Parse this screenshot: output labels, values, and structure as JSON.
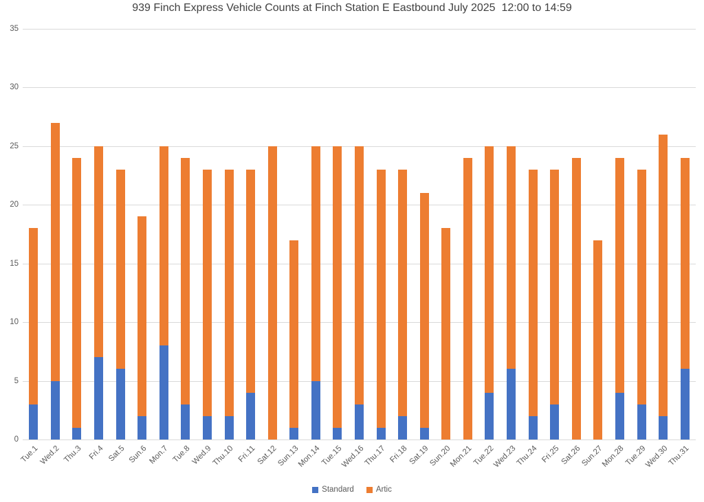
{
  "chart_data": {
    "type": "bar",
    "stacked": true,
    "title": "939 Finch Express Vehicle Counts at Finch Station E Eastbound July 2025  12:00 to 14:59",
    "categories": [
      "Tue.1",
      "Wed.2",
      "Thu.3",
      "Fri.4",
      "Sat.5",
      "Sun.6",
      "Mon.7",
      "Tue.8",
      "Wed.9",
      "Thu.10",
      "Fri.11",
      "Sat.12",
      "Sun.13",
      "Mon.14",
      "Tue.15",
      "Wed.16",
      "Thu.17",
      "Fri.18",
      "Sat.19",
      "Sun.20",
      "Mon.21",
      "Tue.22",
      "Wed.23",
      "Thu.24",
      "Fri.25",
      "Sat.26",
      "Sun.27",
      "Mon.28",
      "Tue.29",
      "Wed.30",
      "Thu.31"
    ],
    "series": [
      {
        "name": "Standard",
        "color": "#4472C4",
        "values": [
          3,
          5,
          1,
          7,
          6,
          2,
          8,
          3,
          2,
          2,
          4,
          0,
          1,
          5,
          1,
          3,
          1,
          2,
          1,
          0,
          0,
          4,
          6,
          2,
          3,
          0,
          0,
          4,
          3,
          2,
          6
        ]
      },
      {
        "name": "Artic",
        "color": "#ED7D31",
        "values": [
          15,
          22,
          23,
          18,
          17,
          17,
          17,
          21,
          21,
          21,
          19,
          25,
          16,
          20,
          24,
          22,
          22,
          21,
          20,
          18,
          24,
          21,
          19,
          21,
          20,
          24,
          17,
          20,
          20,
          24,
          18
        ]
      }
    ],
    "totals": [
      18,
      27,
      24,
      25,
      23,
      19,
      25,
      24,
      23,
      23,
      23,
      25,
      17,
      25,
      25,
      25,
      23,
      23,
      21,
      18,
      24,
      25,
      25,
      23,
      23,
      24,
      17,
      24,
      23,
      26,
      24
    ],
    "xlabel": "",
    "ylabel": "",
    "ylim": [
      0,
      35
    ],
    "yticks": [
      0,
      5,
      10,
      15,
      20,
      25,
      30,
      35
    ],
    "grid": "horizontal",
    "legend_position": "bottom",
    "colors": {
      "gridline": "#D9D9D9",
      "axis_text": "#595959",
      "title_text": "#404040",
      "background": "#FFFFFF"
    }
  }
}
